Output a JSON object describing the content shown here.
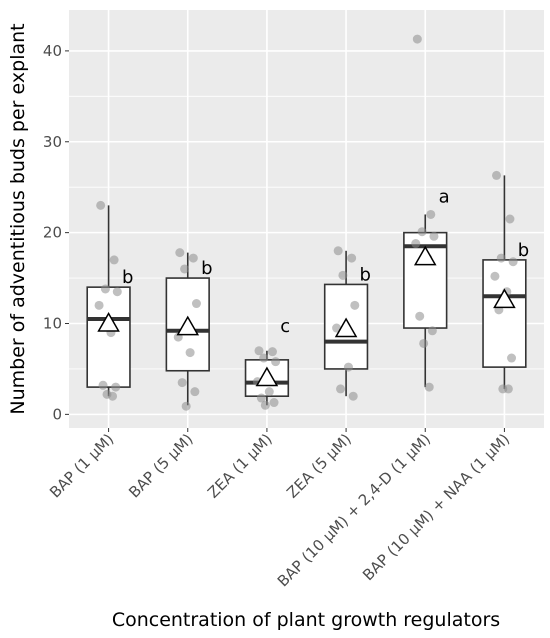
{
  "chart_data": {
    "type": "box",
    "xlabel": "Concentration of plant growth regulators",
    "ylabel": "Number of adventitious buds per explant",
    "ylim": [
      -1.5,
      44.5
    ],
    "yticks": [
      0,
      10,
      20,
      30,
      40
    ],
    "grid": true,
    "categories": [
      "BAP (1 μM)",
      "BAP (5 μM)",
      "ZEA (1 μM)",
      "ZEA (5 μM)",
      "BAP (10 μM) + 2,4-D (1 μM)",
      "BAP (10 μM) + NAA (1 μM)"
    ],
    "boxes": [
      {
        "q1": 3.0,
        "median": 10.5,
        "q3": 14.0,
        "whisker_low": 2.0,
        "whisker_high": 23.0,
        "mean": 10.0,
        "letter": "b",
        "points": [
          23.0,
          17.0,
          13.8,
          13.5,
          12.0,
          9.0,
          3.2,
          3.0,
          2.2,
          2.0
        ]
      },
      {
        "q1": 4.8,
        "median": 9.2,
        "q3": 15.0,
        "whisker_low": 1.0,
        "whisker_high": 17.8,
        "mean": 9.6,
        "letter": "b",
        "points": [
          17.8,
          17.2,
          16.0,
          12.2,
          8.5,
          6.8,
          3.5,
          2.5,
          0.9
        ]
      },
      {
        "q1": 2.0,
        "median": 3.5,
        "q3": 6.0,
        "whisker_low": 1.0,
        "whisker_high": 7.0,
        "mean": 4.0,
        "letter": "c",
        "points": [
          7.0,
          6.9,
          6.2,
          5.8,
          3.6,
          2.5,
          1.8,
          1.3,
          1.0
        ]
      },
      {
        "q1": 5.0,
        "median": 8.0,
        "q3": 14.3,
        "whisker_low": 2.0,
        "whisker_high": 18.0,
        "mean": 9.4,
        "letter": "b",
        "points": [
          18.0,
          17.2,
          15.3,
          12.0,
          9.5,
          5.2,
          2.8,
          2.0
        ]
      },
      {
        "q1": 9.5,
        "median": 18.5,
        "q3": 20.0,
        "whisker_low": 3.0,
        "whisker_high": 22.0,
        "mean": 17.3,
        "letter": "a",
        "points": [
          41.3,
          22.0,
          20.1,
          19.6,
          18.8,
          17.2,
          10.8,
          9.2,
          7.8,
          3.0
        ]
      },
      {
        "q1": 5.2,
        "median": 13.0,
        "q3": 17.0,
        "whisker_low": 2.8,
        "whisker_high": 26.3,
        "mean": 12.6,
        "letter": "b",
        "points": [
          26.3,
          21.5,
          17.2,
          16.8,
          15.2,
          13.5,
          11.5,
          6.2,
          2.8,
          2.8
        ]
      }
    ]
  }
}
